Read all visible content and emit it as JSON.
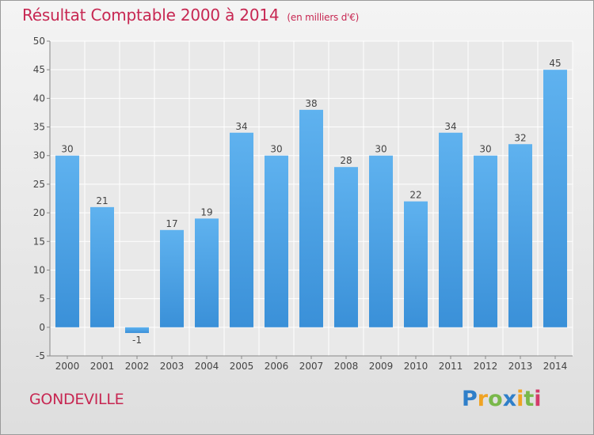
{
  "chart_data": {
    "type": "bar",
    "title": "Résultat Comptable 2000 à 2014",
    "subtitle": "(en milliers d'€)",
    "categories": [
      "2000",
      "2001",
      "2002",
      "2003",
      "2004",
      "2005",
      "2006",
      "2007",
      "2008",
      "2009",
      "2010",
      "2011",
      "2012",
      "2013",
      "2014"
    ],
    "values": [
      30,
      21,
      -1,
      17,
      19,
      34,
      30,
      38,
      28,
      30,
      22,
      34,
      30,
      32,
      45
    ],
    "value_labels": [
      "30",
      "21",
      "-1",
      "17",
      "19",
      "34",
      "30",
      "38",
      "28",
      "30",
      "22",
      "34",
      "30",
      "32",
      "45"
    ],
    "ylim": [
      -5,
      50
    ],
    "yticks": [
      -5,
      0,
      5,
      10,
      15,
      20,
      25,
      30,
      35,
      40,
      45,
      50
    ],
    "grid": true,
    "bar_color": "#3a90d8",
    "bar_color_light": "#5fb2ef",
    "title_color": "#c72752"
  },
  "footer": {
    "commune": "GONDEVILLE",
    "logo_text": "Proxiti",
    "logo_letters": [
      {
        "ch": "P",
        "color": "#2f7fc9"
      },
      {
        "ch": "r",
        "color": "#f0a323"
      },
      {
        "ch": "o",
        "color": "#79b84a"
      },
      {
        "ch": "x",
        "color": "#2f7fc9"
      },
      {
        "ch": "i",
        "color": "#f0a323"
      },
      {
        "ch": "t",
        "color": "#79b84a"
      },
      {
        "ch": "i",
        "color": "#d33b6a"
      }
    ]
  }
}
